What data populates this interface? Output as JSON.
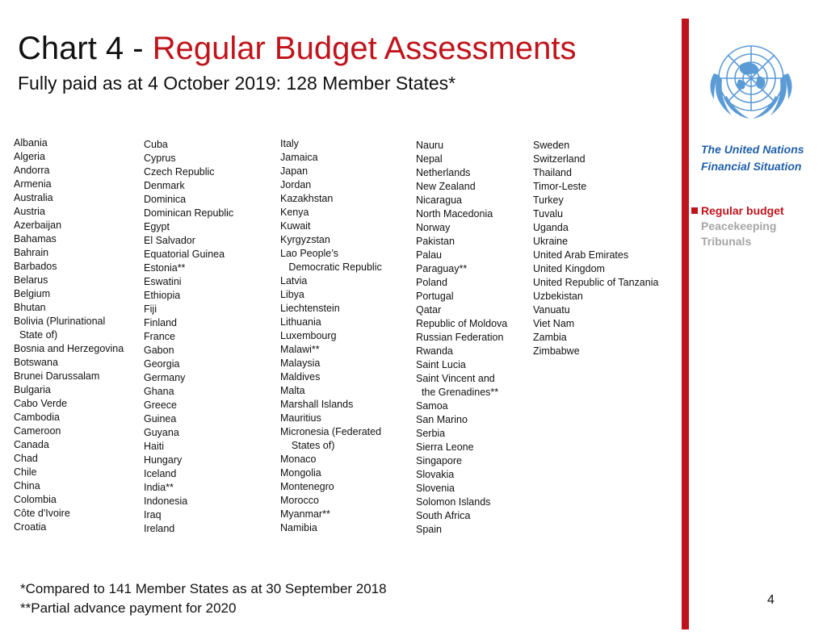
{
  "title": {
    "prefix": "Chart 4 - ",
    "accent": "Regular Budget Assessments"
  },
  "subtitle": "Fully paid as at 4 October 2019: 128 Member States*",
  "columns": [
    [
      "Albania",
      "Algeria",
      "Andorra",
      "Armenia",
      "Australia",
      "Austria",
      "Azerbaijan",
      "Bahamas",
      "Bahrain",
      "Barbados",
      "Belarus",
      "Belgium",
      "Bhutan",
      "Bolivia (Plurinational",
      "  State of)",
      "Bosnia and Herzegovina",
      "Botswana",
      "Brunei Darussalam",
      "Bulgaria",
      "Cabo Verde",
      "Cambodia",
      "Cameroon",
      "Canada",
      "Chad",
      "Chile",
      "China",
      "Colombia",
      "Côte d'Ivoire",
      "Croatia"
    ],
    [
      "Cuba",
      "Cyprus",
      "Czech Republic",
      "Denmark",
      "Dominica",
      "Dominican Republic",
      "Egypt",
      "El Salvador",
      "Equatorial Guinea",
      "Estonia**",
      "Eswatini",
      "Ethiopia",
      "Fiji",
      "Finland",
      "France",
      "Gabon",
      "Georgia",
      "Germany",
      "Ghana",
      "Greece",
      "Guinea",
      "Guyana",
      "Haiti",
      "Hungary",
      "Iceland",
      "India**",
      "Indonesia",
      "Iraq",
      "Ireland"
    ],
    [
      "Italy",
      "Jamaica",
      "Japan",
      "Jordan",
      "Kazakhstan",
      "Kenya",
      "Kuwait",
      "Kyrgyzstan",
      "Lao People’s",
      "   Democratic Republic",
      "Latvia",
      "Libya",
      "Liechtenstein",
      "Lithuania",
      "Luxembourg",
      "Malawi**",
      "Malaysia",
      "Maldives",
      "Malta",
      "Marshall Islands",
      "Mauritius",
      "Micronesia (Federated",
      "    States of)",
      "Monaco",
      "Mongolia",
      "Montenegro",
      "Morocco",
      "Myanmar**",
      "Namibia"
    ],
    [
      "Nauru",
      "Nepal",
      "Netherlands",
      "New Zealand",
      "Nicaragua",
      "North Macedonia",
      "Norway",
      "Pakistan",
      "Palau",
      "Paraguay**",
      "Poland",
      "Portugal",
      "Qatar",
      "Republic of Moldova",
      "Russian Federation",
      "Rwanda",
      "Saint Lucia",
      "Saint Vincent and",
      "  the Grenadines**",
      "Samoa",
      "San Marino",
      "Serbia",
      "Sierra Leone",
      "Singapore",
      "Slovakia",
      "Slovenia",
      "Solomon Islands",
      "South Africa",
      "Spain"
    ],
    [
      "Sweden",
      "Switzerland",
      "Thailand",
      "Timor-Leste",
      "Turkey",
      "Tuvalu",
      "Uganda",
      "Ukraine",
      "United Arab Emirates",
      "United Kingdom",
      "United Republic of Tanzania",
      "Uzbekistan",
      "Vanuatu",
      "Viet Nam",
      "Zambia",
      "Zimbabwe"
    ]
  ],
  "sidebar": {
    "title_line1": "The United Nations",
    "title_line2": "Financial Situation",
    "nav": [
      {
        "label": "Regular budget",
        "active": true
      },
      {
        "label": "Peacekeeping",
        "active": false
      },
      {
        "label": "Tribunals",
        "active": false
      }
    ]
  },
  "footnotes": [
    "*Compared to 141 Member States as at 30 September 2018",
    "**Partial advance payment for 2020"
  ],
  "page_number": "4",
  "colors": {
    "accent_red": "#c0141c",
    "un_blue": "#1f5fa8",
    "logo_blue": "#5b9bd5",
    "inactive_gray": "#a6a6a6"
  },
  "icons": {
    "logo": "un-emblem-icon",
    "bullet": "square-bullet-icon"
  }
}
